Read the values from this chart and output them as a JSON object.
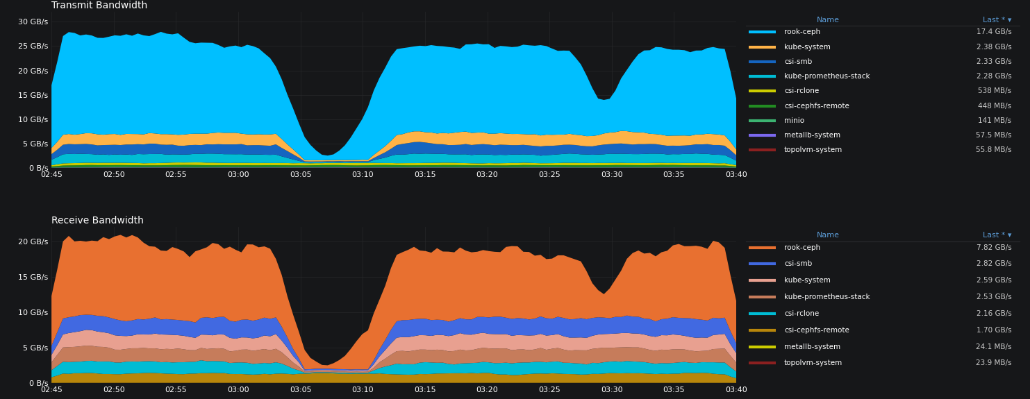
{
  "background_color": "#161719",
  "text_color": "#ffffff",
  "grid_color": "#2a2b2e",
  "legend_header_color": "#5b9bd5",
  "legend_value_color": "#cccccc",
  "x_ticks": [
    "02:45",
    "02:50",
    "02:55",
    "03:00",
    "03:05",
    "03:10",
    "03:15",
    "03:20",
    "03:25",
    "03:30",
    "03:35",
    "03:40"
  ],
  "n_points": 120,
  "transmit": {
    "title": "Transmit Bandwidth",
    "ylim": [
      0,
      32000000000
    ],
    "yticks": [
      0,
      5000000000,
      10000000000,
      15000000000,
      20000000000,
      25000000000,
      30000000000
    ],
    "ytick_labels": [
      "0 B/s",
      "5 GB/s",
      "10 GB/s",
      "15 GB/s",
      "20 GB/s",
      "25 GB/s",
      "30 GB/s"
    ],
    "series": [
      {
        "name": "topolvm-system",
        "color": "#8b2020",
        "last": "55.8 MB/s"
      },
      {
        "name": "metallb-system",
        "color": "#7b68ee",
        "last": "57.5 MB/s"
      },
      {
        "name": "minio",
        "color": "#3cb371",
        "last": "141 MB/s"
      },
      {
        "name": "csi-cephfs-remote",
        "color": "#228b22",
        "last": "448 MB/s"
      },
      {
        "name": "csi-rclone",
        "color": "#cccc00",
        "last": "538 MB/s"
      },
      {
        "name": "kube-prometheus-stack",
        "color": "#00bcd4",
        "last": "2.28 GB/s"
      },
      {
        "name": "csi-smb",
        "color": "#1565c0",
        "last": "2.33 GB/s"
      },
      {
        "name": "kube-system",
        "color": "#ffb347",
        "last": "2.38 GB/s"
      },
      {
        "name": "rook-ceph",
        "color": "#00bfff",
        "last": "17.4 GB/s"
      }
    ],
    "legend_entries": [
      {
        "name": "rook-ceph",
        "color": "#00bfff",
        "last": "17.4 GB/s"
      },
      {
        "name": "kube-system",
        "color": "#ffb347",
        "last": "2.38 GB/s"
      },
      {
        "name": "csi-smb",
        "color": "#1565c0",
        "last": "2.33 GB/s"
      },
      {
        "name": "kube-prometheus-stack",
        "color": "#00bcd4",
        "last": "2.28 GB/s"
      },
      {
        "name": "csi-rclone",
        "color": "#cccc00",
        "last": "538 MB/s"
      },
      {
        "name": "csi-cephfs-remote",
        "color": "#228b22",
        "last": "448 MB/s"
      },
      {
        "name": "minio",
        "color": "#3cb371",
        "last": "141 MB/s"
      },
      {
        "name": "metallb-system",
        "color": "#7b68ee",
        "last": "57.5 MB/s"
      },
      {
        "name": "topolvm-system",
        "color": "#8b2020",
        "last": "55.8 MB/s"
      }
    ]
  },
  "receive": {
    "title": "Receive Bandwidth",
    "ylim": [
      0,
      22000000000
    ],
    "yticks": [
      0,
      5000000000,
      10000000000,
      15000000000,
      20000000000
    ],
    "ytick_labels": [
      "0 B/s",
      "5 GB/s",
      "10 GB/s",
      "15 GB/s",
      "20 GB/s"
    ],
    "series": [
      {
        "name": "topolvm-system",
        "color": "#8b2020",
        "last": "23.9 MB/s"
      },
      {
        "name": "metallb-system",
        "color": "#cccc00",
        "last": "24.1 MB/s"
      },
      {
        "name": "csi-cephfs-remote",
        "color": "#b8860b",
        "last": "1.70 GB/s"
      },
      {
        "name": "csi-rclone",
        "color": "#00bcd4",
        "last": "2.16 GB/s"
      },
      {
        "name": "kube-prometheus-stack",
        "color": "#c67c5b",
        "last": "2.53 GB/s"
      },
      {
        "name": "kube-system",
        "color": "#e8a090",
        "last": "2.59 GB/s"
      },
      {
        "name": "csi-smb",
        "color": "#4169e1",
        "last": "2.82 GB/s"
      },
      {
        "name": "rook-ceph",
        "color": "#e87030",
        "last": "7.82 GB/s"
      }
    ],
    "legend_entries": [
      {
        "name": "rook-ceph",
        "color": "#e87030",
        "last": "7.82 GB/s"
      },
      {
        "name": "csi-smb",
        "color": "#4169e1",
        "last": "2.82 GB/s"
      },
      {
        "name": "kube-system",
        "color": "#e8a090",
        "last": "2.59 GB/s"
      },
      {
        "name": "kube-prometheus-stack",
        "color": "#c67c5b",
        "last": "2.53 GB/s"
      },
      {
        "name": "csi-rclone",
        "color": "#00bcd4",
        "last": "2.16 GB/s"
      },
      {
        "name": "csi-cephfs-remote",
        "color": "#b8860b",
        "last": "1.70 GB/s"
      },
      {
        "name": "metallb-system",
        "color": "#cccc00",
        "last": "24.1 MB/s"
      },
      {
        "name": "topolvm-system",
        "color": "#8b2020",
        "last": "23.9 MB/s"
      }
    ]
  }
}
